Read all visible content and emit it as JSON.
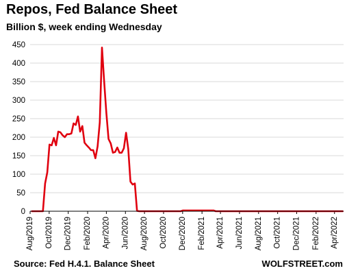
{
  "chart_data": {
    "type": "line",
    "title": "Repos, Fed Balance Sheet",
    "subtitle": "Billion $, week ending Wednesday",
    "xlabel": "",
    "ylabel": "",
    "ylim": [
      0,
      450
    ],
    "yticks": [
      0,
      50,
      100,
      150,
      200,
      250,
      300,
      350,
      400,
      450
    ],
    "xlim": [
      "2019-08-01",
      "2022-04-30"
    ],
    "xticks": [
      "Aug/2019",
      "Oct/2019",
      "Dec/2019",
      "Feb/2020",
      "Apr/2020",
      "Jun/2020",
      "Aug/2020",
      "Oct/2020",
      "Dec/2020",
      "Feb/2021",
      "Apr/2021",
      "Jun/2021",
      "Aug/2021",
      "Oct/2021",
      "Dec/2021",
      "Feb/2022",
      "Apr/2022"
    ],
    "grid": "horizontal",
    "legend": "none",
    "series": [
      {
        "color": "#e0000f",
        "points": [
          [
            "2019-08-07",
            0
          ],
          [
            "2019-09-11",
            0
          ],
          [
            "2019-09-18",
            75
          ],
          [
            "2019-09-25",
            105
          ],
          [
            "2019-10-02",
            180
          ],
          [
            "2019-10-09",
            178
          ],
          [
            "2019-10-16",
            198
          ],
          [
            "2019-10-23",
            178
          ],
          [
            "2019-10-30",
            215
          ],
          [
            "2019-11-06",
            213
          ],
          [
            "2019-11-13",
            205
          ],
          [
            "2019-11-20",
            200
          ],
          [
            "2019-11-27",
            208
          ],
          [
            "2019-12-04",
            208
          ],
          [
            "2019-12-11",
            210
          ],
          [
            "2019-12-18",
            237
          ],
          [
            "2019-12-25",
            233
          ],
          [
            "2020-01-01",
            256
          ],
          [
            "2020-01-08",
            215
          ],
          [
            "2020-01-15",
            230
          ],
          [
            "2020-01-22",
            185
          ],
          [
            "2020-01-29",
            178
          ],
          [
            "2020-02-05",
            172
          ],
          [
            "2020-02-12",
            165
          ],
          [
            "2020-02-19",
            165
          ],
          [
            "2020-02-26",
            143
          ],
          [
            "2020-03-04",
            175
          ],
          [
            "2020-03-11",
            240
          ],
          [
            "2020-03-18",
            442
          ],
          [
            "2020-03-25",
            350
          ],
          [
            "2020-04-01",
            265
          ],
          [
            "2020-04-08",
            195
          ],
          [
            "2020-04-15",
            183
          ],
          [
            "2020-04-22",
            158
          ],
          [
            "2020-04-29",
            160
          ],
          [
            "2020-05-06",
            172
          ],
          [
            "2020-05-13",
            158
          ],
          [
            "2020-05-20",
            158
          ],
          [
            "2020-05-27",
            170
          ],
          [
            "2020-06-03",
            212
          ],
          [
            "2020-06-10",
            168
          ],
          [
            "2020-06-17",
            80
          ],
          [
            "2020-06-24",
            72
          ],
          [
            "2020-07-01",
            75
          ],
          [
            "2020-07-08",
            1
          ],
          [
            "2020-07-15",
            0
          ],
          [
            "2020-11-25",
            0
          ],
          [
            "2020-12-02",
            2
          ],
          [
            "2021-03-10",
            2
          ],
          [
            "2021-03-17",
            0
          ],
          [
            "2022-04-27",
            0
          ]
        ]
      }
    ]
  },
  "source": "Source: Fed H.4.1. Balance Sheet",
  "brand": "WOLFSTREET.com"
}
